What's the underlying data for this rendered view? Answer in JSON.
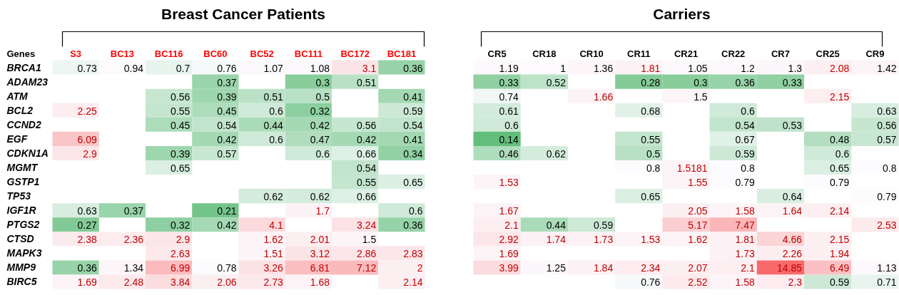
{
  "chart_data": [
    {
      "type": "heatmap",
      "title": "Breast Cancer Patients",
      "ylabel": "Genes",
      "data_labels": true,
      "categories": [
        "S3",
        "BC13",
        "BC116",
        "BC60",
        "BC52",
        "BC111",
        "BC172",
        "BC181"
      ],
      "y_categories": [
        "BRCA1",
        "ADAM23",
        "ATM",
        "BCL2",
        "CCND2",
        "EGF",
        "CDKN1A",
        "MGMT",
        "GSTP1",
        "TP53",
        "IGF1R",
        "PTGS2",
        "CTSD",
        "MAPK3",
        "MMP9",
        "BIRC5"
      ],
      "cells": [
        [
          0.73,
          0.94,
          0.7,
          0.76,
          1.07,
          1.08,
          3.1,
          0.36
        ],
        [
          null,
          null,
          null,
          0.37,
          null,
          0.3,
          0.51,
          null
        ],
        [
          null,
          null,
          0.56,
          0.39,
          0.51,
          0.5,
          null,
          0.41
        ],
        [
          2.25,
          null,
          0.55,
          0.45,
          0.6,
          0.32,
          null,
          0.59
        ],
        [
          null,
          null,
          0.45,
          0.54,
          0.44,
          0.42,
          0.56,
          0.54
        ],
        [
          6.09,
          null,
          null,
          0.42,
          0.6,
          0.47,
          0.42,
          0.41
        ],
        [
          2.9,
          null,
          0.39,
          0.57,
          null,
          0.6,
          0.66,
          0.34
        ],
        [
          null,
          null,
          0.65,
          null,
          null,
          null,
          0.54,
          null
        ],
        [
          null,
          null,
          null,
          null,
          null,
          null,
          0.55,
          0.65
        ],
        [
          null,
          null,
          null,
          null,
          0.62,
          0.62,
          0.66,
          null
        ],
        [
          0.63,
          0.37,
          null,
          0.21,
          null,
          1.7,
          null,
          0.6
        ],
        [
          0.27,
          null,
          0.32,
          0.42,
          4.1,
          null,
          3.24,
          0.36
        ],
        [
          2.38,
          2.36,
          2.9,
          null,
          1.62,
          2.01,
          1.5,
          null
        ],
        [
          null,
          null,
          2.63,
          null,
          1.51,
          3.12,
          2.86,
          2.83
        ],
        [
          0.36,
          1.34,
          6.99,
          0.78,
          3.26,
          6.81,
          7.12,
          2
        ],
        [
          1.69,
          2.48,
          3.84,
          2.06,
          2.73,
          1.68,
          null,
          2.14
        ]
      ]
    },
    {
      "type": "heatmap",
      "title": "Carriers",
      "data_labels": true,
      "categories": [
        "CR5",
        "CR18",
        "CR10",
        "CR11",
        "CR21",
        "CR22",
        "CR7",
        "CR25",
        "CR9"
      ],
      "y_categories": [
        null,
        null,
        null,
        null,
        null,
        null,
        null,
        null,
        null,
        null,
        null,
        null,
        null,
        null,
        null,
        null
      ],
      "cells": [
        [
          1.19,
          1,
          1.36,
          1.81,
          1.05,
          1.2,
          1.3,
          2.08,
          1.42
        ],
        [
          0.33,
          0.52,
          null,
          0.28,
          0.3,
          0.36,
          0.33,
          null,
          null
        ],
        [
          0.74,
          null,
          1.66,
          null,
          1.5,
          null,
          null,
          2.15,
          null
        ],
        [
          0.61,
          null,
          null,
          0.68,
          null,
          0.6,
          null,
          null,
          0.63
        ],
        [
          0.6,
          null,
          null,
          null,
          null,
          0.54,
          0.53,
          null,
          0.56
        ],
        [
          0.14,
          null,
          null,
          0.55,
          null,
          0.67,
          null,
          0.48,
          0.57
        ],
        [
          0.46,
          0.62,
          null,
          0.5,
          null,
          0.59,
          null,
          0.6,
          null
        ],
        [
          null,
          null,
          null,
          0.8,
          1.5181,
          0.8,
          null,
          0.65,
          0.8
        ],
        [
          1.53,
          null,
          null,
          null,
          1.55,
          0.79,
          null,
          0.79,
          null
        ],
        [
          null,
          null,
          null,
          0.65,
          null,
          null,
          0.64,
          null,
          0.79
        ],
        [
          1.67,
          null,
          null,
          null,
          2.05,
          1.58,
          1.64,
          2.14,
          null
        ],
        [
          2.1,
          0.44,
          0.59,
          null,
          5.17,
          7.47,
          null,
          null,
          2.53
        ],
        [
          2.92,
          1.74,
          1.73,
          1.53,
          1.62,
          1.81,
          4.66,
          2.15,
          null
        ],
        [
          1.69,
          null,
          null,
          null,
          null,
          1.73,
          2.26,
          1.94,
          null
        ],
        [
          3.99,
          1.25,
          1.84,
          2.34,
          2.07,
          2.1,
          14.85,
          6.49,
          1.13
        ],
        [
          null,
          null,
          null,
          0.76,
          2.52,
          1.58,
          2.3,
          0.59,
          0.71
        ]
      ]
    }
  ]
}
